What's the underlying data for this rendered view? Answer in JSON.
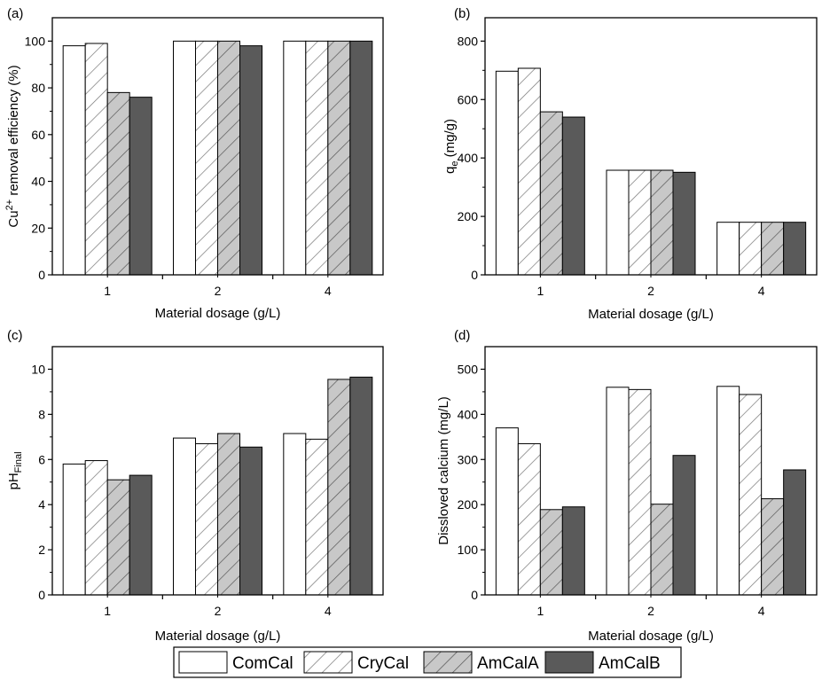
{
  "legend": {
    "items": [
      {
        "name": "ComCal",
        "fill": "white"
      },
      {
        "name": "CryCal",
        "fill": "hatch-white"
      },
      {
        "name": "AmCalA",
        "fill": "hatch-gray"
      },
      {
        "name": "AmCalB",
        "fill": "dark"
      }
    ]
  },
  "colors": {
    "comcal": "#ffffff",
    "crycal": "#ffffff",
    "amcala": "#c8c8c8",
    "amcalb": "#5a5a5a",
    "axis": "#000000"
  },
  "chart_data": [
    {
      "panel": "(a)",
      "type": "bar",
      "xlabel": "Material dosage (g/L)",
      "ylabel": {
        "prefix": "Cu",
        "sup": "2+",
        "suffix": " removal efficiency (%)"
      },
      "categories": [
        "1",
        "2",
        "4"
      ],
      "ylim": [
        0,
        110
      ],
      "yticks": [
        0,
        20,
        40,
        60,
        80,
        100
      ],
      "series": [
        {
          "name": "ComCal",
          "values": [
            98,
            100,
            100
          ]
        },
        {
          "name": "CryCal",
          "values": [
            99,
            100,
            100
          ]
        },
        {
          "name": "AmCalA",
          "values": [
            78,
            100,
            100
          ]
        },
        {
          "name": "AmCalB",
          "values": [
            76,
            98,
            100
          ]
        }
      ]
    },
    {
      "panel": "(b)",
      "type": "bar",
      "xlabel": "Material dosage (g/L)",
      "ylabel": {
        "prefix": "q",
        "sub": "e",
        "suffix": " (mg/g)"
      },
      "categories": [
        "1",
        "2",
        "4"
      ],
      "ylim": [
        0,
        880
      ],
      "yticks": [
        0,
        200,
        400,
        600,
        800
      ],
      "series": [
        {
          "name": "ComCal",
          "values": [
            697,
            358,
            180
          ]
        },
        {
          "name": "CryCal",
          "values": [
            707,
            358,
            180
          ]
        },
        {
          "name": "AmCalA",
          "values": [
            558,
            358,
            180
          ]
        },
        {
          "name": "AmCalB",
          "values": [
            540,
            351,
            180
          ]
        }
      ]
    },
    {
      "panel": "(c)",
      "type": "bar",
      "xlabel": "Material dosage (g/L)",
      "ylabel": {
        "prefix": "pH",
        "sub": "Final",
        "suffix": ""
      },
      "categories": [
        "1",
        "2",
        "4"
      ],
      "ylim": [
        0,
        11
      ],
      "yticks": [
        0,
        2,
        4,
        6,
        8,
        10
      ],
      "series": [
        {
          "name": "ComCal",
          "values": [
            5.8,
            6.95,
            7.15
          ]
        },
        {
          "name": "CryCal",
          "values": [
            5.95,
            6.7,
            6.9
          ]
        },
        {
          "name": "AmCalA",
          "values": [
            5.1,
            7.15,
            9.55
          ]
        },
        {
          "name": "AmCalB",
          "values": [
            5.3,
            6.55,
            9.65
          ]
        }
      ]
    },
    {
      "panel": "(d)",
      "type": "bar",
      "xlabel": "Material dosage (g/L)",
      "ylabel": {
        "prefix": "Dissloved calcium (mg/L)",
        "suffix": ""
      },
      "categories": [
        "1",
        "2",
        "4"
      ],
      "ylim": [
        0,
        550
      ],
      "yticks": [
        0,
        100,
        200,
        300,
        400,
        500
      ],
      "series": [
        {
          "name": "ComCal",
          "values": [
            370,
            460,
            462
          ]
        },
        {
          "name": "CryCal",
          "values": [
            335,
            455,
            444
          ]
        },
        {
          "name": "AmCalA",
          "values": [
            189,
            201,
            213
          ]
        },
        {
          "name": "AmCalB",
          "values": [
            195,
            309,
            277
          ]
        }
      ]
    }
  ]
}
